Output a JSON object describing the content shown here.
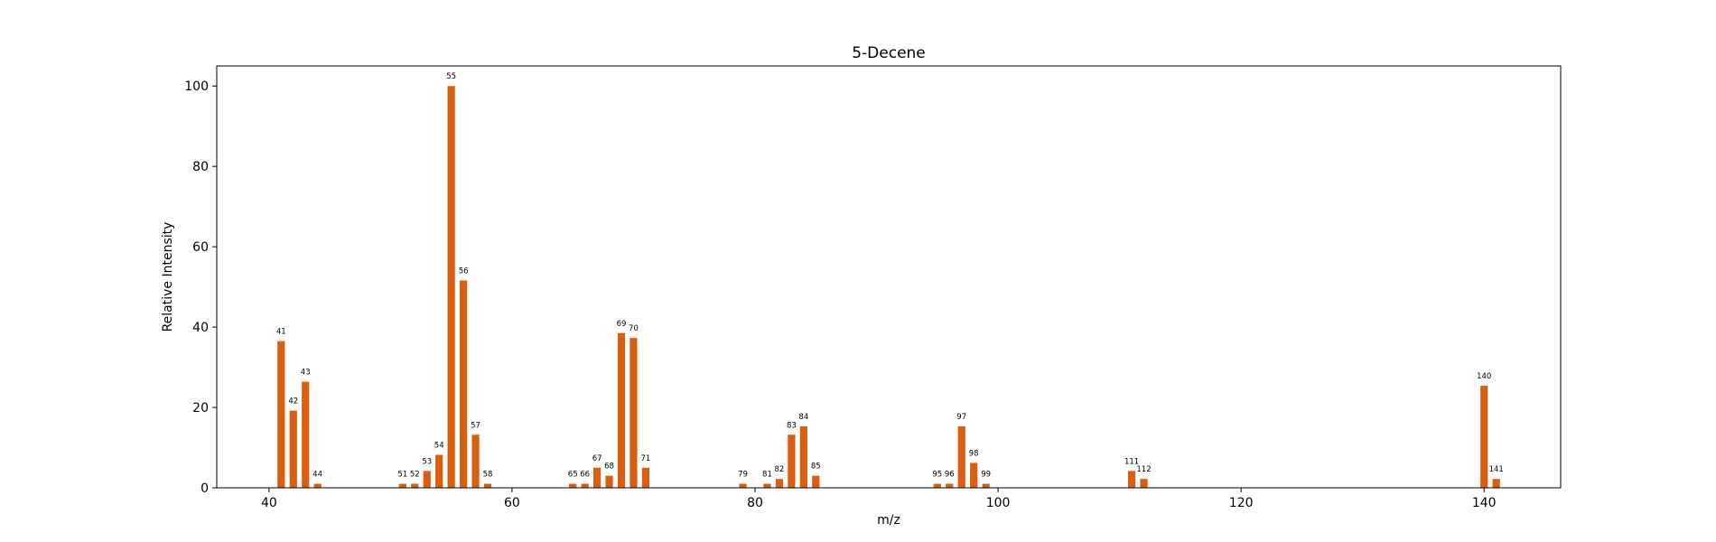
{
  "chart_data": {
    "type": "bar",
    "title": "5-Decene",
    "xlabel": "m/z",
    "ylabel": "Relative Intensity",
    "xlim": [
      35.7,
      146.3
    ],
    "ylim": [
      0,
      105
    ],
    "xticks": [
      40,
      60,
      80,
      100,
      120,
      140
    ],
    "yticks": [
      0,
      20,
      40,
      60,
      80,
      100
    ],
    "bar_color": "#d95f0e",
    "grid": false,
    "points": [
      {
        "mz": 41,
        "intensity": 36.5
      },
      {
        "mz": 42,
        "intensity": 19.2
      },
      {
        "mz": 43,
        "intensity": 26.4
      },
      {
        "mz": 44,
        "intensity": 1.0
      },
      {
        "mz": 51,
        "intensity": 1.0
      },
      {
        "mz": 52,
        "intensity": 1.0
      },
      {
        "mz": 53,
        "intensity": 4.2
      },
      {
        "mz": 54,
        "intensity": 8.2
      },
      {
        "mz": 55,
        "intensity": 100.0
      },
      {
        "mz": 56,
        "intensity": 51.6
      },
      {
        "mz": 57,
        "intensity": 13.2
      },
      {
        "mz": 58,
        "intensity": 1.0
      },
      {
        "mz": 65,
        "intensity": 1.0
      },
      {
        "mz": 66,
        "intensity": 1.0
      },
      {
        "mz": 67,
        "intensity": 5.0
      },
      {
        "mz": 68,
        "intensity": 3.0
      },
      {
        "mz": 69,
        "intensity": 38.5
      },
      {
        "mz": 70,
        "intensity": 37.3
      },
      {
        "mz": 71,
        "intensity": 5.0
      },
      {
        "mz": 79,
        "intensity": 1.0
      },
      {
        "mz": 81,
        "intensity": 1.0
      },
      {
        "mz": 82,
        "intensity": 2.2
      },
      {
        "mz": 83,
        "intensity": 13.2
      },
      {
        "mz": 84,
        "intensity": 15.3
      },
      {
        "mz": 85,
        "intensity": 3.0
      },
      {
        "mz": 95,
        "intensity": 1.0
      },
      {
        "mz": 96,
        "intensity": 1.0
      },
      {
        "mz": 97,
        "intensity": 15.3
      },
      {
        "mz": 98,
        "intensity": 6.2
      },
      {
        "mz": 99,
        "intensity": 1.0
      },
      {
        "mz": 111,
        "intensity": 4.2
      },
      {
        "mz": 112,
        "intensity": 2.2
      },
      {
        "mz": 140,
        "intensity": 25.4
      },
      {
        "mz": 141,
        "intensity": 2.2
      }
    ]
  }
}
